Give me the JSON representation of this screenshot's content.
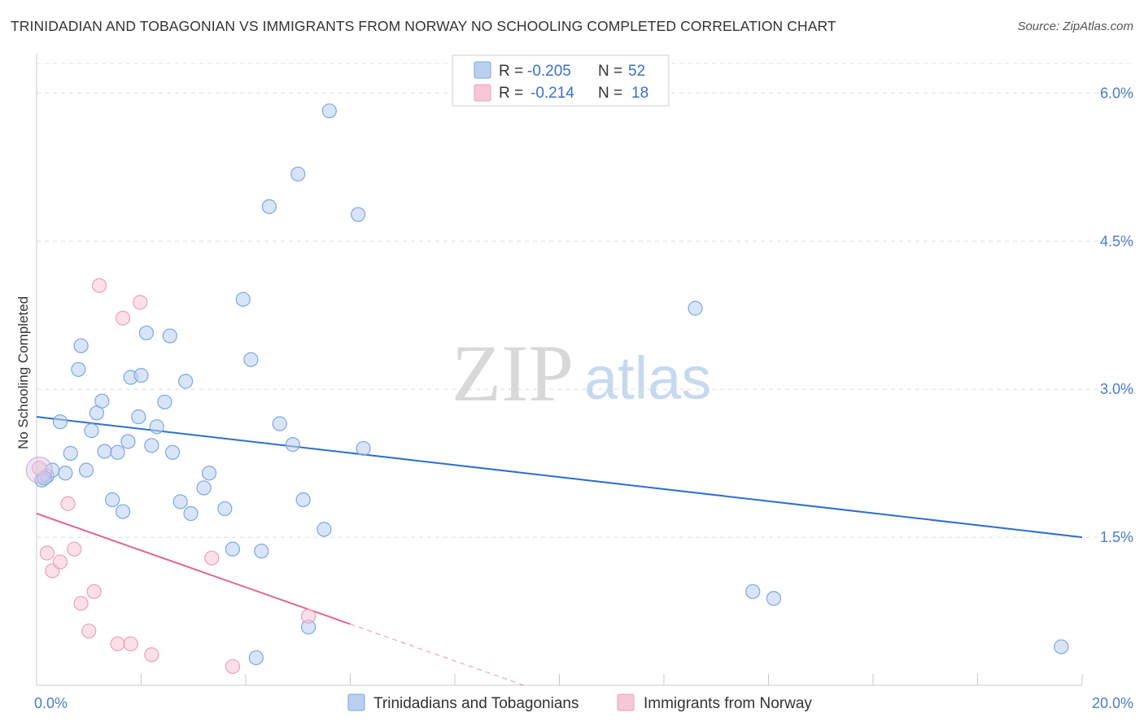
{
  "title": "TRINIDADIAN AND TOBAGONIAN VS IMMIGRANTS FROM NORWAY NO SCHOOLING COMPLETED CORRELATION CHART",
  "source": "Source: ZipAtlas.com",
  "chart_data": {
    "type": "scatter",
    "ylabel": "No Schooling Completed",
    "xlim": [
      0,
      20
    ],
    "ylim": [
      0,
      6.3
    ],
    "x_tick_labels": [
      {
        "value": 0,
        "label": "0.0%"
      },
      {
        "value": 20,
        "label": "20.0%"
      }
    ],
    "y_tick_labels": [
      {
        "value": 1.5,
        "label": "1.5%"
      },
      {
        "value": 3.0,
        "label": "3.0%"
      },
      {
        "value": 4.5,
        "label": "4.5%"
      },
      {
        "value": 6.0,
        "label": "6.0%"
      }
    ],
    "legend": {
      "r_label": "R =",
      "n_label": "N =",
      "entries": [
        {
          "r": "-0.205",
          "n": "52"
        },
        {
          "r": "-0.214",
          "n": "18"
        }
      ]
    },
    "watermark": {
      "zip": "ZIP",
      "atlas": "atlas"
    },
    "series": [
      {
        "name": "Trinidadians and Tobagonians",
        "color": "#7aa7e6",
        "fill": "#b9d0f0",
        "line_color": "#2d6fd0",
        "trend": {
          "x0": 0,
          "y0": 2.72,
          "x1": 20,
          "y1": 1.5
        },
        "points": [
          [
            0.1,
            2.08
          ],
          [
            0.2,
            2.12
          ],
          [
            0.3,
            2.18
          ],
          [
            0.45,
            2.67
          ],
          [
            0.55,
            2.15
          ],
          [
            0.65,
            2.35
          ],
          [
            0.8,
            3.2
          ],
          [
            0.85,
            3.44
          ],
          [
            0.95,
            2.18
          ],
          [
            1.05,
            2.58
          ],
          [
            1.15,
            2.76
          ],
          [
            1.25,
            2.88
          ],
          [
            1.3,
            2.37
          ],
          [
            1.45,
            1.88
          ],
          [
            1.55,
            2.36
          ],
          [
            1.65,
            1.76
          ],
          [
            1.75,
            2.47
          ],
          [
            1.8,
            3.12
          ],
          [
            1.95,
            2.72
          ],
          [
            2.0,
            3.14
          ],
          [
            2.1,
            3.57
          ],
          [
            2.2,
            2.43
          ],
          [
            2.3,
            2.62
          ],
          [
            2.45,
            2.87
          ],
          [
            2.55,
            3.54
          ],
          [
            2.6,
            2.36
          ],
          [
            2.75,
            1.86
          ],
          [
            2.85,
            3.08
          ],
          [
            2.95,
            1.74
          ],
          [
            3.2,
            2.0
          ],
          [
            3.3,
            2.15
          ],
          [
            3.6,
            1.79
          ],
          [
            3.75,
            1.38
          ],
          [
            3.95,
            3.91
          ],
          [
            4.1,
            3.3
          ],
          [
            4.2,
            0.28
          ],
          [
            4.3,
            1.36
          ],
          [
            4.45,
            4.85
          ],
          [
            4.65,
            2.65
          ],
          [
            4.9,
            2.44
          ],
          [
            5.0,
            5.18
          ],
          [
            5.1,
            1.88
          ],
          [
            5.2,
            0.59
          ],
          [
            5.5,
            1.58
          ],
          [
            5.6,
            5.82
          ],
          [
            6.15,
            4.77
          ],
          [
            6.25,
            2.4
          ],
          [
            12.6,
            3.82
          ],
          [
            13.7,
            0.95
          ],
          [
            14.1,
            0.88
          ],
          [
            19.6,
            0.39
          ],
          [
            0.15,
            2.1
          ]
        ]
      },
      {
        "name": "Immigrants from Norway",
        "color": "#eda0b8",
        "fill": "#f7c7d6",
        "line_color": "#e0658f",
        "trend": {
          "x0": 0,
          "y0": 1.74,
          "x1": 6.0,
          "y1": 0.62
        },
        "trend_dashed_to": {
          "x": 20,
          "y": -1.9
        },
        "points": [
          [
            0.05,
            2.2
          ],
          [
            0.2,
            1.34
          ],
          [
            0.3,
            1.16
          ],
          [
            0.45,
            1.25
          ],
          [
            0.6,
            1.84
          ],
          [
            0.72,
            1.38
          ],
          [
            0.85,
            0.83
          ],
          [
            1.0,
            0.55
          ],
          [
            1.1,
            0.95
          ],
          [
            1.2,
            4.05
          ],
          [
            1.55,
            0.42
          ],
          [
            1.65,
            3.72
          ],
          [
            1.8,
            0.42
          ],
          [
            1.98,
            3.88
          ],
          [
            2.2,
            0.31
          ],
          [
            3.35,
            1.29
          ],
          [
            3.75,
            0.19
          ],
          [
            5.2,
            0.7
          ]
        ]
      }
    ]
  }
}
